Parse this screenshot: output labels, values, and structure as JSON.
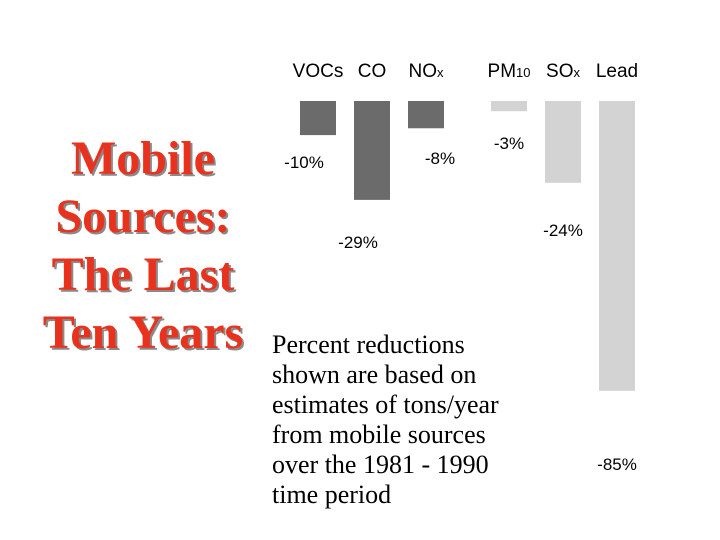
{
  "title": {
    "lines": [
      "Mobile",
      "Sources:",
      "The Last",
      "Ten Years"
    ],
    "color": "#e8321e"
  },
  "footnote": {
    "lines": [
      "Percent reductions",
      "shown are based on",
      "estimates of tons/year",
      "from mobile sources",
      "over the 1981 - 1990",
      "time period"
    ]
  },
  "chart_data": {
    "type": "bar",
    "categories": [
      {
        "name": "VOCs"
      },
      {
        "name": "CO"
      },
      {
        "name": "NO",
        "sub": "x"
      },
      {
        "name": "PM",
        "sub": "10"
      },
      {
        "name": "SO",
        "sub": "x"
      },
      {
        "name": "Lead"
      }
    ],
    "values": [
      -10,
      -29,
      -8,
      -3,
      -24,
      -85
    ],
    "labels": [
      "-10%",
      "-29%",
      "-8%",
      "-3%",
      "-24%",
      "-85%"
    ],
    "colors": [
      "#6b6b6b",
      "#6b6b6b",
      "#6b6b6b",
      "#d3d3d3",
      "#d3d3d3",
      "#d3d3d3"
    ],
    "unit": "%",
    "orientation": "vertical, hanging from top baseline",
    "ylim": [
      -85,
      0
    ]
  }
}
